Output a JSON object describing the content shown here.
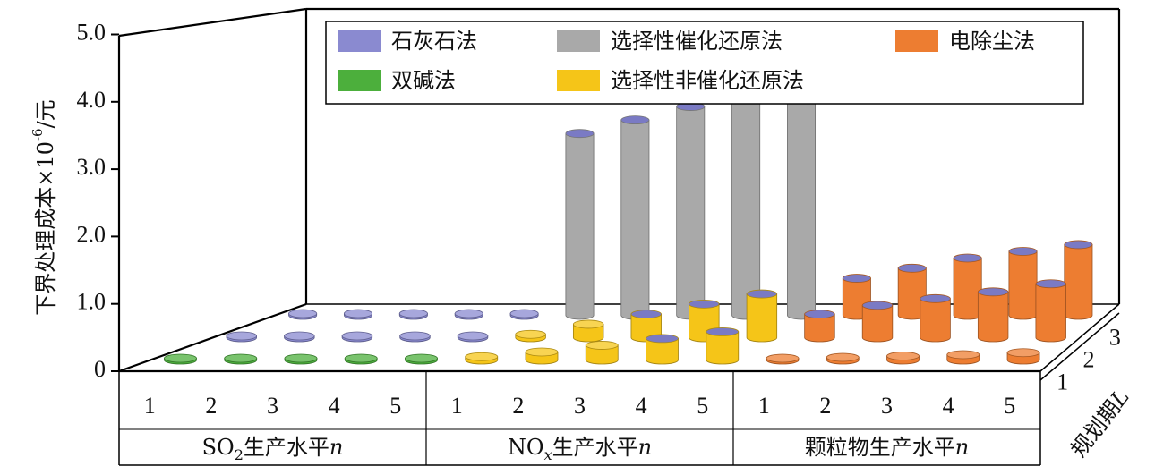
{
  "chart_data": {
    "type": "bar3d",
    "ylabel_text": "下界处理成本×10",
    "ylabel_exp": "-6",
    "ylabel_unit": "/元",
    "yticks": [
      "0",
      "1.0",
      "2.0",
      "3.0",
      "4.0",
      "5.0"
    ],
    "ylim": [
      0,
      5
    ],
    "grid": false,
    "legend_placement": "top",
    "z_axis": {
      "label": "规划期",
      "label_var": "L",
      "ticks": [
        "1",
        "2",
        "3"
      ]
    },
    "groups": [
      {
        "label_pre": "SO",
        "label_sub": "2",
        "label_post": "生产水平",
        "label_var": "n",
        "ticks": [
          "1",
          "2",
          "3",
          "4",
          "5"
        ]
      },
      {
        "label_pre": "NO",
        "label_sub": "x",
        "label_post": "生产水平",
        "label_var": "n",
        "ticks": [
          "1",
          "2",
          "3",
          "4",
          "5"
        ]
      },
      {
        "label_pre": "",
        "label_sub": "",
        "label_post": "颗粒物生产水平",
        "label_var": "n",
        "ticks": [
          "1",
          "2",
          "3",
          "4",
          "5"
        ]
      }
    ],
    "series": [
      {
        "name": "石灰石法",
        "color": "#8a8ad0",
        "group": 0,
        "rows": [
          2,
          3
        ],
        "values": [
          [
            0.02,
            0.02,
            0.02,
            0.02,
            0.02
          ],
          [
            0.02,
            0.02,
            0.02,
            0.02,
            0.02
          ]
        ]
      },
      {
        "name": "双碱法",
        "color": "#4caf3c",
        "group": 0,
        "rows": [
          1
        ],
        "values": [
          [
            0.01,
            0.01,
            0.01,
            0.01,
            0.01
          ]
        ]
      },
      {
        "name": "选择性催化还原法",
        "color": "#a9a9a9",
        "group": 1,
        "rows": [
          3
        ],
        "values": [
          [
            2.7,
            2.9,
            3.1,
            3.3,
            3.5
          ]
        ]
      },
      {
        "name": "选择性非催化还原法",
        "color": "#f5c518",
        "group": 1,
        "rows": [
          1,
          2
        ],
        "values": [
          [
            0.05,
            0.12,
            0.22,
            0.32,
            0.42
          ],
          [
            0.05,
            0.2,
            0.35,
            0.5,
            0.65
          ]
        ]
      },
      {
        "name": "电除尘法",
        "color": "#ed7d31",
        "group": 2,
        "rows": [
          1,
          2,
          3
        ],
        "values": [
          [
            0.02,
            0.04,
            0.06,
            0.08,
            0.11
          ],
          [
            0.35,
            0.48,
            0.58,
            0.68,
            0.8
          ],
          [
            0.55,
            0.7,
            0.85,
            0.95,
            1.05
          ]
        ]
      }
    ]
  }
}
